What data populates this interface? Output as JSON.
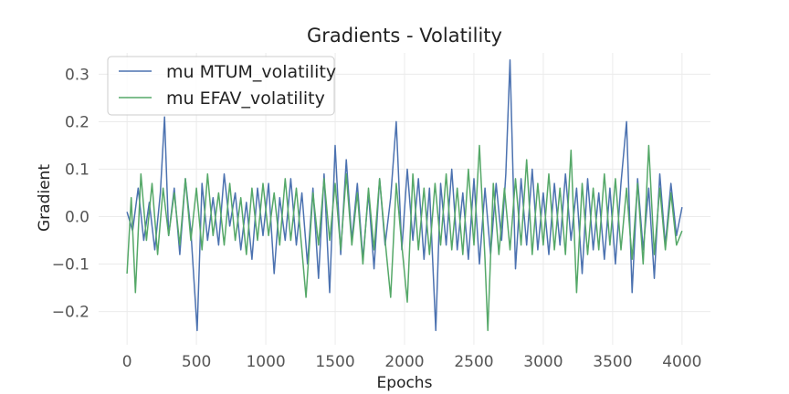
{
  "chart_data": {
    "type": "line",
    "title": "Gradients - Volatility",
    "xlabel": "Epochs",
    "ylabel": "Gradient",
    "xlim": [
      -205,
      4205
    ],
    "ylim": [
      -0.27,
      0.345
    ],
    "xticks": [
      0,
      500,
      1000,
      1500,
      2000,
      2500,
      3000,
      3500,
      4000
    ],
    "xtick_labels": [
      "0",
      "500",
      "1000",
      "1500",
      "2000",
      "2500",
      "3000",
      "3500",
      "4000"
    ],
    "yticks": [
      -0.2,
      -0.1,
      0.0,
      0.1,
      0.2,
      0.3
    ],
    "ytick_labels": [
      "−0.2",
      "−0.1",
      "0.0",
      "0.1",
      "0.2",
      "0.3"
    ],
    "grid": true,
    "legend_position": "top-left",
    "series": [
      {
        "name": "mu MTUM_volatility",
        "color": "#4c72b0",
        "x": [
          0,
          40,
          80,
          120,
          160,
          200,
          240,
          270,
          300,
          340,
          380,
          420,
          460,
          505,
          540,
          580,
          620,
          660,
          700,
          740,
          780,
          820,
          860,
          900,
          940,
          980,
          1020,
          1060,
          1100,
          1140,
          1180,
          1220,
          1260,
          1300,
          1340,
          1380,
          1420,
          1460,
          1500,
          1540,
          1580,
          1620,
          1660,
          1700,
          1740,
          1780,
          1820,
          1860,
          1900,
          1940,
          1980,
          2020,
          2060,
          2100,
          2140,
          2180,
          2225,
          2260,
          2300,
          2340,
          2380,
          2420,
          2460,
          2500,
          2540,
          2580,
          2620,
          2660,
          2700,
          2730,
          2760,
          2800,
          2840,
          2880,
          2920,
          2960,
          3000,
          3040,
          3080,
          3120,
          3160,
          3200,
          3240,
          3280,
          3320,
          3360,
          3400,
          3440,
          3480,
          3520,
          3560,
          3600,
          3640,
          3680,
          3720,
          3760,
          3800,
          3840,
          3880,
          3920,
          3960,
          4000
        ],
        "y": [
          0.01,
          -0.03,
          0.06,
          -0.05,
          0.03,
          -0.07,
          0.05,
          0.21,
          -0.04,
          0.06,
          -0.08,
          0.08,
          -0.03,
          -0.24,
          0.07,
          -0.05,
          0.04,
          -0.06,
          0.09,
          -0.02,
          0.05,
          -0.07,
          0.03,
          -0.09,
          0.06,
          -0.04,
          0.07,
          -0.12,
          0.04,
          -0.05,
          0.08,
          -0.06,
          0.05,
          -0.1,
          0.06,
          -0.13,
          0.09,
          -0.16,
          0.15,
          -0.08,
          0.12,
          -0.05,
          0.07,
          -0.09,
          0.05,
          -0.11,
          0.08,
          -0.06,
          0.04,
          0.2,
          -0.07,
          0.1,
          -0.05,
          0.08,
          -0.09,
          0.06,
          -0.24,
          0.07,
          -0.06,
          0.1,
          -0.07,
          0.05,
          -0.09,
          0.08,
          -0.1,
          0.06,
          -0.08,
          0.07,
          -0.05,
          0.09,
          0.33,
          -0.11,
          0.08,
          -0.06,
          0.1,
          -0.07,
          0.05,
          -0.08,
          0.07,
          -0.06,
          0.09,
          -0.05,
          0.06,
          -0.12,
          0.08,
          -0.07,
          0.05,
          -0.09,
          0.06,
          -0.1,
          0.07,
          0.2,
          -0.16,
          0.08,
          -0.07,
          0.06,
          -0.13,
          0.09,
          -0.06,
          0.07,
          -0.04,
          0.02
        ]
      },
      {
        "name": "mu EFAV_volatility",
        "color": "#55a868",
        "x": [
          0,
          30,
          60,
          100,
          140,
          180,
          220,
          260,
          300,
          340,
          380,
          420,
          460,
          500,
          540,
          580,
          620,
          660,
          700,
          740,
          780,
          820,
          860,
          900,
          940,
          980,
          1020,
          1060,
          1100,
          1140,
          1180,
          1220,
          1260,
          1290,
          1340,
          1380,
          1420,
          1460,
          1500,
          1540,
          1580,
          1620,
          1660,
          1700,
          1740,
          1780,
          1820,
          1860,
          1900,
          1940,
          1980,
          2020,
          2060,
          2100,
          2140,
          2180,
          2220,
          2260,
          2300,
          2340,
          2380,
          2420,
          2460,
          2500,
          2540,
          2580,
          2600,
          2640,
          2680,
          2720,
          2760,
          2800,
          2840,
          2880,
          2920,
          2960,
          3000,
          3040,
          3080,
          3120,
          3160,
          3200,
          3240,
          3280,
          3320,
          3360,
          3400,
          3440,
          3480,
          3520,
          3560,
          3600,
          3640,
          3680,
          3720,
          3760,
          3800,
          3840,
          3880,
          3920,
          3960,
          4000
        ],
        "y": [
          -0.12,
          0.04,
          -0.16,
          0.09,
          -0.05,
          0.07,
          -0.08,
          0.06,
          -0.04,
          0.05,
          -0.06,
          0.08,
          -0.05,
          0.06,
          -0.07,
          0.09,
          -0.04,
          0.05,
          -0.06,
          0.07,
          -0.05,
          0.04,
          -0.08,
          0.06,
          -0.05,
          0.07,
          -0.04,
          0.05,
          -0.06,
          0.08,
          -0.05,
          0.06,
          -0.07,
          -0.17,
          0.05,
          -0.06,
          0.08,
          -0.05,
          0.07,
          -0.07,
          0.09,
          -0.06,
          0.05,
          -0.1,
          0.06,
          -0.07,
          0.08,
          -0.05,
          -0.17,
          0.07,
          -0.06,
          -0.18,
          0.09,
          -0.07,
          0.06,
          -0.08,
          0.07,
          -0.06,
          0.09,
          -0.07,
          0.06,
          -0.08,
          0.1,
          -0.06,
          0.15,
          -0.09,
          -0.24,
          0.07,
          -0.08,
          0.06,
          -0.07,
          0.08,
          -0.06,
          0.12,
          -0.08,
          0.07,
          -0.06,
          0.09,
          -0.07,
          0.06,
          -0.08,
          0.14,
          -0.16,
          0.07,
          -0.08,
          0.06,
          -0.07,
          0.09,
          -0.06,
          0.08,
          -0.07,
          0.06,
          -0.09,
          0.07,
          -0.1,
          0.15,
          -0.08,
          0.06,
          -0.07,
          0.05,
          -0.06,
          -0.03
        ]
      }
    ]
  }
}
